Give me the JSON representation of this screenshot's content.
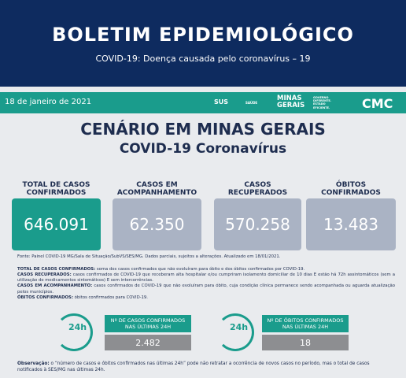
{
  "header": {
    "title": "BOLETIM EPIDEMIOLÓGICO",
    "subtitle": "COVID-19: Doença causada pelo coronavírus – 19"
  },
  "bar": {
    "date": "18 de janeiro de 2021",
    "logos": [
      "SUS",
      "SAÚDE",
      "MINAS GERAIS",
      "GOVERNO DIFERENTE. ESTADO EFICIENTE.",
      "CMC"
    ]
  },
  "scenario": {
    "title": "CENÁRIO EM MINAS GERAIS",
    "subtitle": "COVID-19 Coronavírus"
  },
  "cards": [
    {
      "label": "TOTAL DE CASOS CONFIRMADOS",
      "value": "646.091"
    },
    {
      "label": "CASOS EM ACOMPANHAMENTO",
      "value": "62.350"
    },
    {
      "label": "CASOS RECUPERADOS",
      "value": "570.258"
    },
    {
      "label": "ÓBITOS CONFIRMADOS",
      "value": "13.483"
    }
  ],
  "source": "Fonte: Painel COVID-19 MG/Sala de Situação/SubVS/SES/MG. Dados parciais, sujeitos a alterações. Atualizado em 18/01/2021.",
  "definitions": [
    {
      "term": "TOTAL DE CASOS CONFIRMADOS:",
      "text": "soma dos casos confirmados que não evoluíram para óbito e dos óbitos confirmados por COVID-19."
    },
    {
      "term": "CASOS RECUPERADOS:",
      "text": "casos confirmados de COVID-19 que receberam alta hospitalar e/ou cumpriram isolamento domiciliar de 10 dias E estão há 72h assintomáticos (sem a utilização de medicamentos sintomáticos) E sem intercorrências."
    },
    {
      "term": "CASOS EM ACOMPANHAMENTO:",
      "text": "casos confirmados de COVID-19 que não evoluíram para óbito, cuja condição clínica permanece sendo acompanhada ou aguarda atualização pelos municípios."
    },
    {
      "term": "ÓBITOS CONFIRMADOS:",
      "text": "óbitos confirmados para COVID-19."
    }
  ],
  "last24h": [
    {
      "icon": "24h",
      "label": "Nº DE CASOS CONFIRMADOS NAS ÚLTIMAS 24H",
      "value": "2.482"
    },
    {
      "icon": "24h",
      "label": "Nº DE ÓBITOS CONFIRMADOS NAS ÚLTIMAS 24H",
      "value": "18"
    }
  ],
  "note": {
    "term": "Observação:",
    "text": "o “número de casos e óbitos confirmados nas últimas 24h” pode não retratar a ocorrência de novos casos no período, mas o total de casos notificados à SES/MG nas últimas 24h."
  }
}
